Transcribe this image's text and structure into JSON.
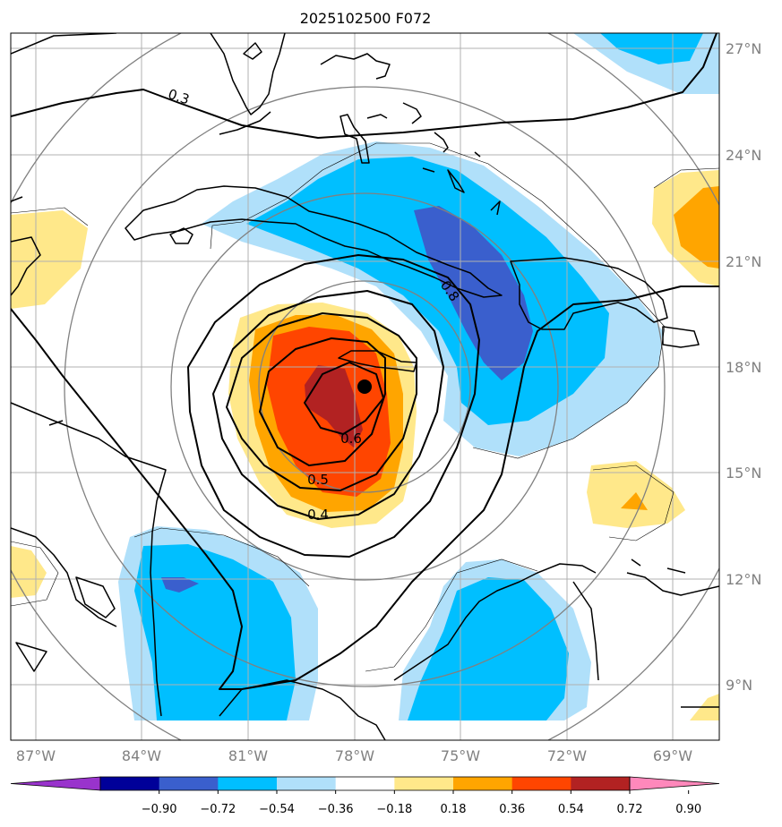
{
  "title": "2025102500 F072",
  "map": {
    "lon_range": [
      -88,
      -67.5
    ],
    "lat_range": [
      7.5,
      27.5
    ],
    "lon_ticks": [
      {
        "value": -87,
        "label": "87°W"
      },
      {
        "value": -84,
        "label": "84°W"
      },
      {
        "value": -81,
        "label": "81°W"
      },
      {
        "value": -78,
        "label": "78°W"
      },
      {
        "value": -75,
        "label": "75°W"
      },
      {
        "value": -72,
        "label": "72°W"
      },
      {
        "value": -69,
        "label": "69°W"
      }
    ],
    "lat_ticks": [
      {
        "value": 27,
        "label": "27°N"
      },
      {
        "value": 24,
        "label": "24°N"
      },
      {
        "value": 21,
        "label": "21°N"
      },
      {
        "value": 18,
        "label": "18°N"
      },
      {
        "value": 15,
        "label": "15°N"
      },
      {
        "value": 12,
        "label": "12°N"
      },
      {
        "value": 9,
        "label": "9°N"
      }
    ],
    "storm_center": {
      "lon": -78.0,
      "lat": 17.4
    },
    "contour_labels": [
      {
        "text": "0.3",
        "lon": -83.0,
        "lat": 25.0
      },
      {
        "text": "0.8",
        "lon": -75.2,
        "lat": 20.2
      },
      {
        "text": "0.6",
        "lon": -78.3,
        "lat": 16.0
      },
      {
        "text": "0.5",
        "lon": -79.2,
        "lat": 15.0
      },
      {
        "text": "0.4",
        "lon": -79.2,
        "lat": 14.0
      }
    ],
    "colors": {
      "grid": "#b0b0b0",
      "rings": "#808080",
      "coast": "#000000",
      "contour": "#000000"
    }
  },
  "colorbar": {
    "colors": [
      "#9933cc",
      "#000099",
      "#3a5fcd",
      "#00bfff",
      "#b0e0fa",
      "#ffffff",
      "#ffe88a",
      "#ffa500",
      "#ff4500",
      "#b22222",
      "#ff88bb"
    ],
    "ticks": [
      "−0.90",
      "−0.72",
      "−0.54",
      "−0.36",
      "−0.18",
      "0.18",
      "0.36",
      "0.54",
      "0.72",
      "0.90"
    ]
  }
}
